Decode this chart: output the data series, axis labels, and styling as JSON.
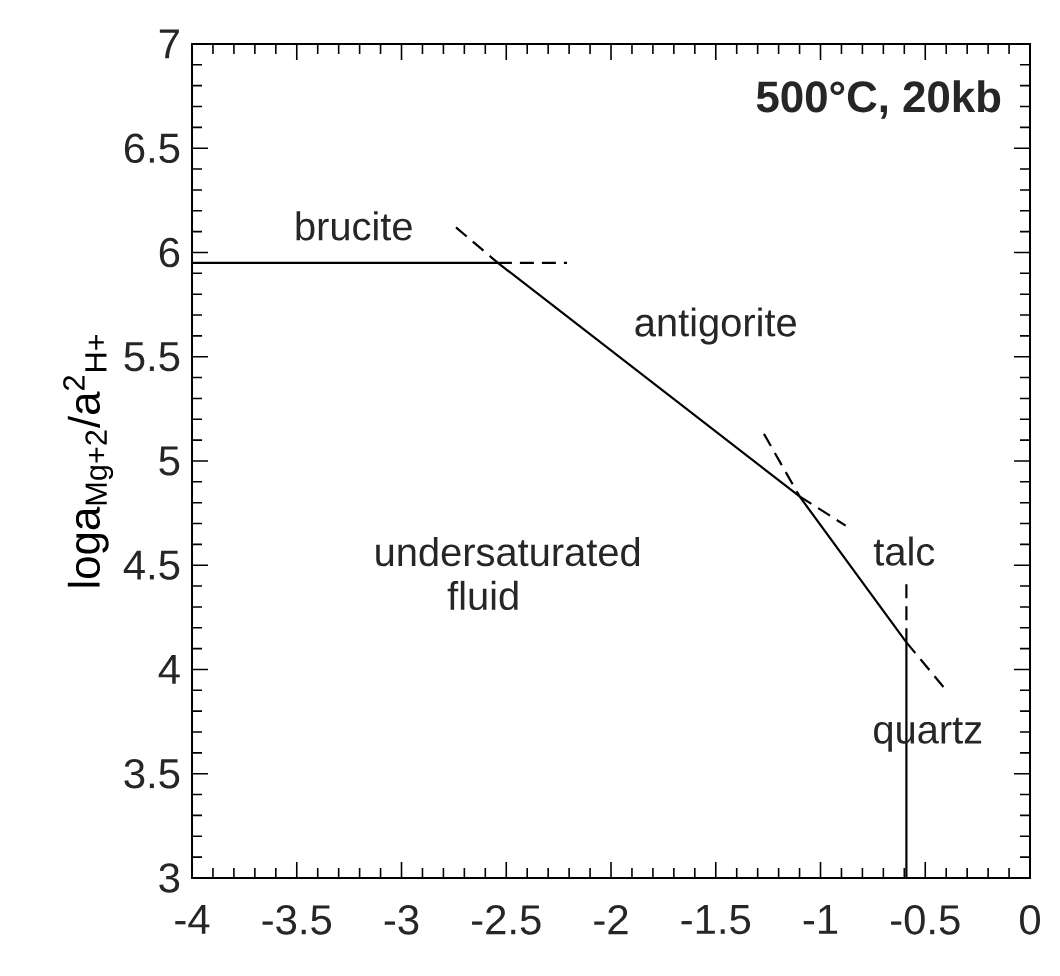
{
  "chart_data": {
    "type": "line",
    "title": "500°C,  20kb",
    "ylabel": "loga$_{Mg+2}$/a$^{2}$$_{H+}$",
    "xlim": [
      -4,
      0
    ],
    "ylim": [
      3,
      7
    ],
    "xticks": [
      -4,
      -3.5,
      -3,
      -2.5,
      -2,
      -1.5,
      -1,
      -0.5,
      0
    ],
    "yticks": [
      3,
      3.5,
      4,
      4.5,
      5,
      5.5,
      6,
      6.5,
      7
    ],
    "grid": false,
    "marker": "none",
    "series": [
      {
        "color": "#000000",
        "line_style": "solid",
        "x": [
          -4,
          -2.54,
          -1.1,
          -0.59,
          -0.59
        ],
        "values": [
          5.95,
          5.95,
          4.83,
          4.13,
          3
        ]
      },
      {
        "color": "#000000",
        "line_style": "dashed",
        "x": [
          -2.54,
          -2.21,
          -2.3,
          -2.74,
          -2.54,
          -2.0,
          -1.1,
          -0.88,
          -1.0,
          -1.27,
          -1.1,
          -0.8,
          -0.59,
          -0.4,
          -0.5,
          -0.59,
          -0.59
        ],
        "values": [
          5.95,
          5.95,
          null,
          6.12,
          5.95,
          null,
          4.83,
          4.69,
          null,
          5.13,
          4.83,
          null,
          4.13,
          3.9,
          null,
          4.13,
          4.41
        ]
      }
    ],
    "annotations": [
      "brucite",
      "antigorite",
      "undersaturated fluid",
      "talc",
      "quartz"
    ]
  }
}
